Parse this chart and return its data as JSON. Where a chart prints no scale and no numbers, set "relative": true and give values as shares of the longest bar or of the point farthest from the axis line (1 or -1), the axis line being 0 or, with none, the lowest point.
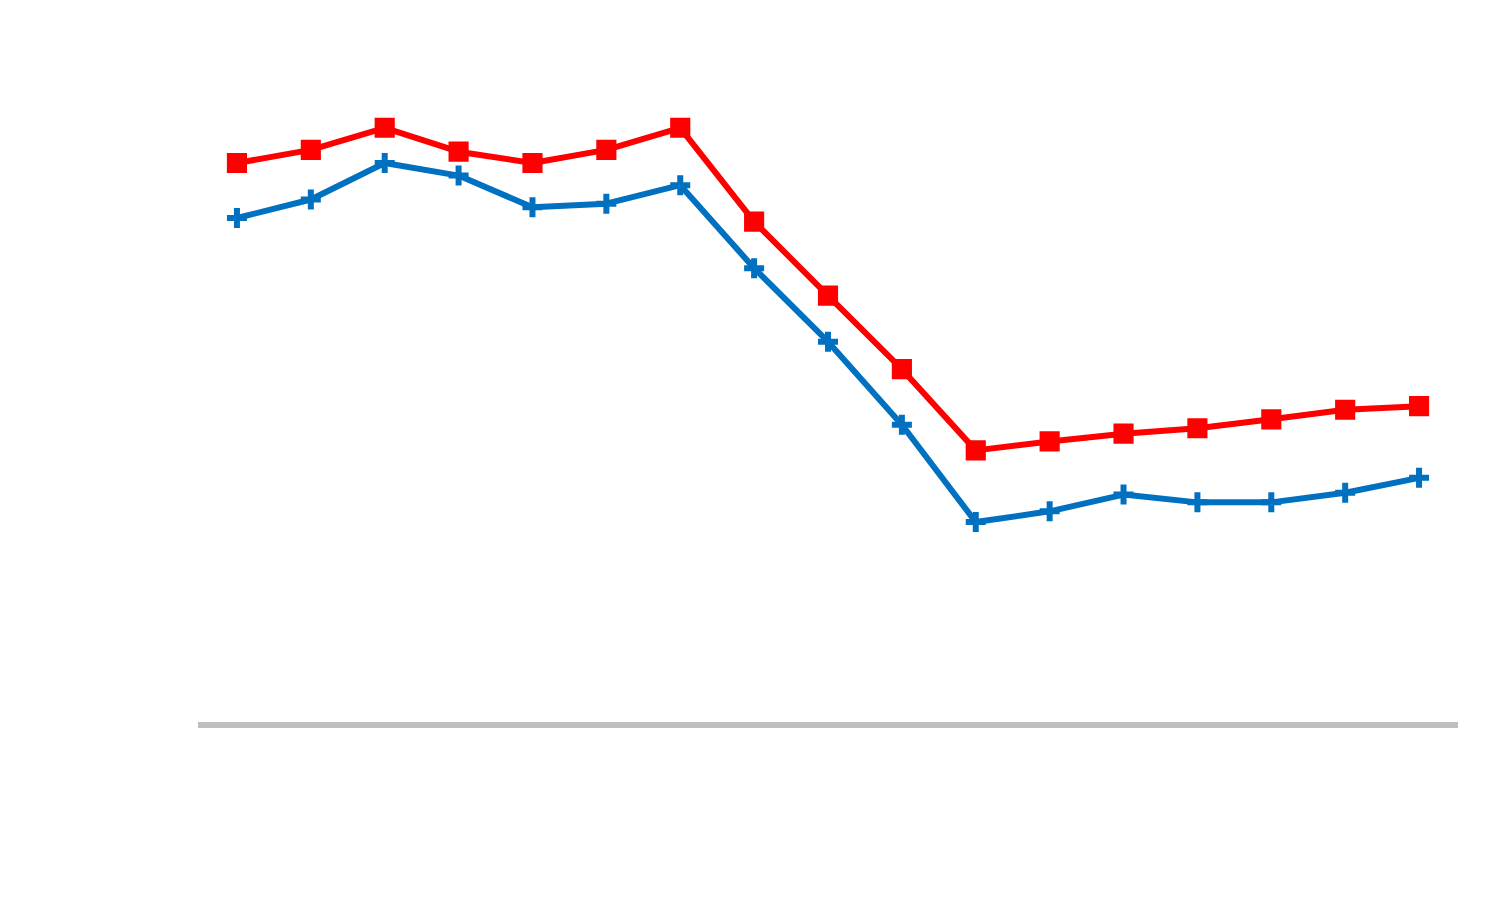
{
  "chart_data": {
    "type": "line",
    "relative": true,
    "grid": false,
    "legend": false,
    "categories": [
      null,
      null,
      null,
      null,
      null,
      null,
      null,
      null,
      null,
      null,
      null,
      null,
      null,
      null,
      null,
      null,
      null
    ],
    "series": [
      {
        "color": "#0070c0",
        "marker": "cross",
        "values": [
          0.849,
          0.88,
          0.941,
          0.92,
          0.867,
          0.873,
          0.904,
          0.765,
          0.642,
          0.503,
          0.34,
          0.358,
          0.386,
          0.373,
          0.373,
          0.389,
          0.414
        ]
      },
      {
        "color": "#ff0000",
        "marker": "square",
        "values": [
          0.941,
          0.963,
          1,
          0.96,
          0.941,
          0.963,
          1,
          0.843,
          0.719,
          0.596,
          0.46,
          0.475,
          0.488,
          0.497,
          0.512,
          0.528,
          0.534
        ]
      }
    ]
  }
}
